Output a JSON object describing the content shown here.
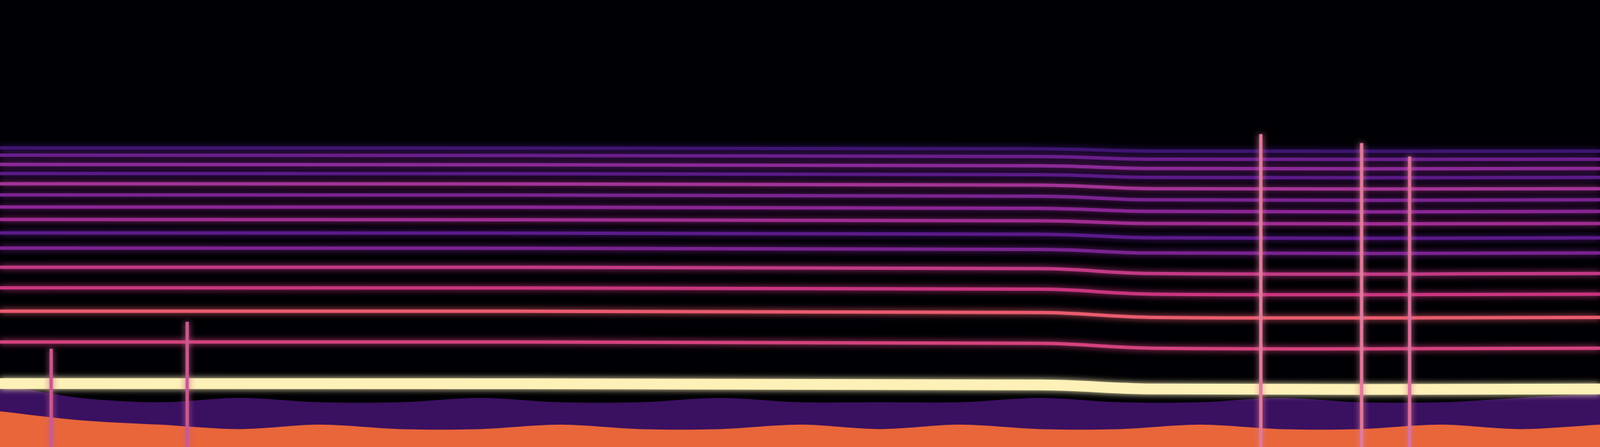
{
  "chart_data": {
    "type": "line",
    "xlim": [
      0,
      100
    ],
    "ylim": [
      0,
      100
    ],
    "grid": false,
    "tick_labels": false,
    "x": [
      0,
      65,
      72,
      100
    ],
    "series": [
      {
        "type": "area",
        "color": "#3a1060",
        "x": [
          0,
          5,
          10,
          15,
          20,
          25,
          30,
          35,
          40,
          45,
          50,
          55,
          60,
          65,
          70,
          75,
          80,
          85,
          90,
          95,
          100
        ],
        "values": [
          14,
          11,
          10,
          11,
          10,
          10,
          11,
          10,
          10,
          11,
          10,
          10,
          10,
          11,
          10,
          10,
          11,
          10,
          10,
          11,
          12
        ]
      },
      {
        "type": "area",
        "color": "#e8663a",
        "x": [
          0,
          5,
          10,
          15,
          20,
          25,
          30,
          35,
          40,
          45,
          50,
          55,
          60,
          65,
          70,
          75,
          80,
          85,
          90,
          95,
          100
        ],
        "values": [
          8,
          6,
          5,
          4,
          5,
          4,
          4,
          5,
          4,
          4,
          5,
          4,
          5,
          4,
          4,
          5,
          4,
          4,
          5,
          4,
          5
        ]
      },
      {
        "color": "#3d1670",
        "values": [
          66.9,
          66.7,
          66.2,
          66.2
        ]
      },
      {
        "color": "#6a1f8c",
        "values": [
          65.3,
          65.0,
          64.4,
          64.4
        ]
      },
      {
        "color": "#8c2a98",
        "values": [
          63.2,
          62.9,
          62.3,
          62.3
        ]
      },
      {
        "color": "#5a1a86",
        "values": [
          61.2,
          60.9,
          60.3,
          60.3
        ]
      },
      {
        "color": "#a33396",
        "values": [
          58.9,
          58.6,
          57.8,
          57.8
        ]
      },
      {
        "color": "#7a2390",
        "values": [
          56.4,
          56.1,
          55.3,
          55.3
        ]
      },
      {
        "color": "#8a2594",
        "values": [
          53.7,
          53.4,
          52.7,
          52.7
        ]
      },
      {
        "color": "#a02c92",
        "values": [
          50.9,
          50.6,
          50.0,
          50.0
        ]
      },
      {
        "color": "#5b1a8a",
        "values": [
          47.9,
          47.6,
          46.8,
          46.8
        ]
      },
      {
        "color": "#7a2390",
        "values": [
          44.5,
          44.2,
          43.4,
          43.4
        ]
      },
      {
        "color": "#c23a86",
        "values": [
          40.2,
          39.9,
          38.8,
          38.8
        ]
      },
      {
        "color": "#c8357e",
        "values": [
          35.6,
          35.3,
          34.2,
          34.2
        ]
      },
      {
        "color": "#e95c6e",
        "values": [
          30.4,
          30.1,
          29.0,
          29.0
        ]
      },
      {
        "color": "#d4437d",
        "values": [
          23.5,
          23.2,
          22.1,
          22.1
        ]
      },
      {
        "color": "#fdf1b8",
        "line_style": "thick",
        "values": [
          14.2,
          13.9,
          13.0,
          13.0
        ]
      },
      {
        "color": "#c85a90",
        "x": [
          3.2,
          3.2
        ],
        "values": [
          0,
          22
        ]
      },
      {
        "color": "#c85a90",
        "x": [
          11.7,
          11.7
        ],
        "values": [
          0,
          28
        ]
      },
      {
        "color": "#e07a9a",
        "x": [
          78.8,
          78.8
        ],
        "values": [
          0,
          70
        ]
      },
      {
        "color": "#e07a9a",
        "x": [
          85.1,
          85.1
        ],
        "values": [
          0,
          68
        ]
      },
      {
        "color": "#d8709a",
        "x": [
          88.1,
          88.1
        ],
        "values": [
          0,
          65
        ]
      }
    ]
  }
}
